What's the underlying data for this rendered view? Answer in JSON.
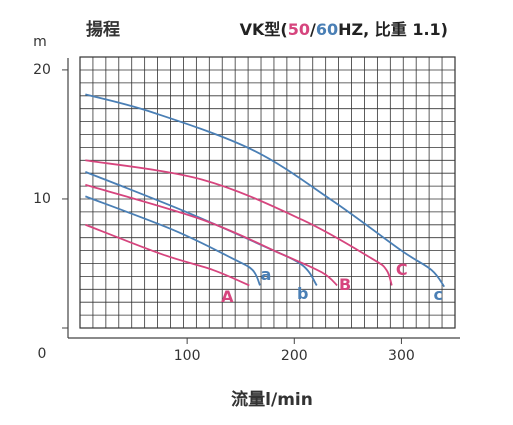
{
  "chart_data": {
    "type": "line",
    "header": "揚程",
    "title_parts": [
      "VK型(",
      "50",
      "/",
      "60",
      "HZ, 比重 1.1)"
    ],
    "title_colors": [
      "#222222",
      "#d6457e",
      "#222222",
      "#4a7fb5",
      "#222222"
    ],
    "y_label": "m",
    "x_label": "流量l/min",
    "xlim": [
      0,
      350
    ],
    "ylim": [
      0,
      21
    ],
    "xticks": [
      100,
      200,
      300
    ],
    "yticks": [
      0,
      10,
      20
    ],
    "grid": true,
    "series": [
      {
        "name": "c",
        "color": "#4a7fb5",
        "x": [
          5,
          68,
          161,
          235,
          300,
          328,
          340
        ],
        "values": [
          18.1,
          16.7,
          13.8,
          9.9,
          6.0,
          4.5,
          3.2
        ]
      },
      {
        "name": "C",
        "color": "#d6457e",
        "x": [
          5,
          114,
          207,
          272,
          286,
          291
        ],
        "values": [
          13.0,
          11.5,
          8.4,
          5.4,
          4.5,
          3.3
        ]
      },
      {
        "name": "b",
        "color": "#4a7fb5",
        "x": [
          5,
          96,
          170,
          207,
          221
        ],
        "values": [
          12.1,
          9.1,
          6.4,
          4.9,
          3.3
        ]
      },
      {
        "name": "B",
        "color": "#d6457e",
        "x": [
          5,
          114,
          189,
          226,
          240
        ],
        "values": [
          11.1,
          8.4,
          5.7,
          4.3,
          3.3
        ]
      },
      {
        "name": "a",
        "color": "#4a7fb5",
        "x": [
          5,
          87,
          142,
          161,
          168
        ],
        "values": [
          10.2,
          7.6,
          5.4,
          4.5,
          3.3
        ]
      },
      {
        "name": "A",
        "color": "#d6457e",
        "x": [
          5,
          77,
          124,
          158
        ],
        "values": [
          8.0,
          5.7,
          4.5,
          3.3
        ]
      }
    ]
  }
}
